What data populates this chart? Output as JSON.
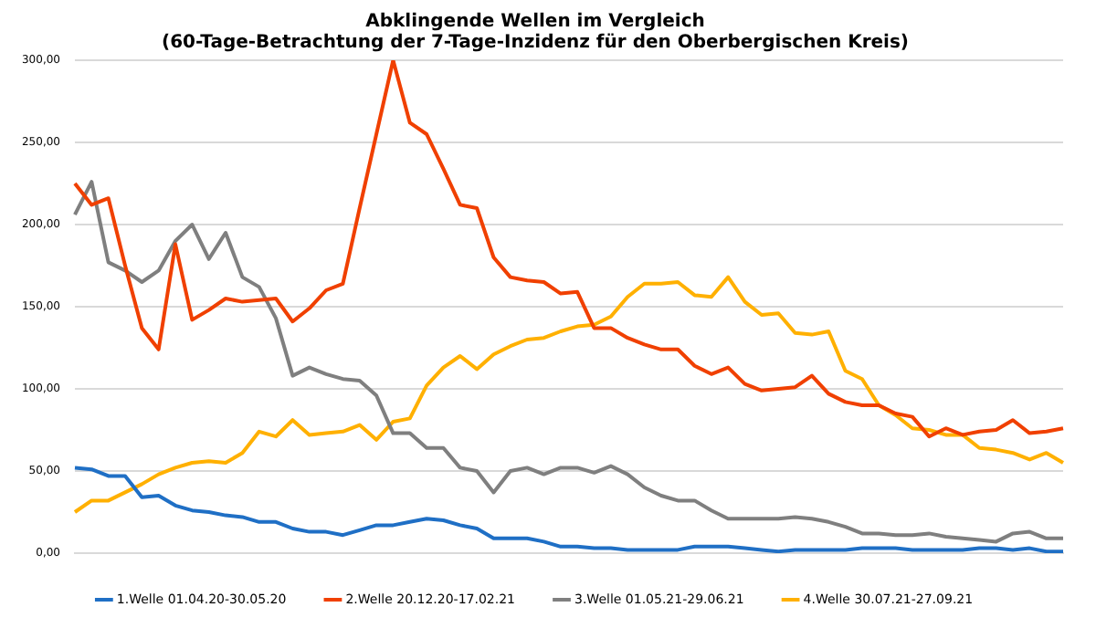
{
  "chart_data": {
    "type": "line",
    "title": "Abklingende Wellen im Vergleich",
    "subtitle": "(60-Tage-Betrachtung der 7-Tage-Inzidenz für den Oberbergischen Kreis)",
    "categories": [
      null,
      null,
      null,
      null,
      null,
      null,
      null,
      null,
      null,
      null,
      null,
      null,
      null,
      null,
      null,
      null,
      null,
      null,
      null,
      null,
      null,
      null,
      null,
      null,
      null,
      null,
      null,
      null,
      null,
      null,
      null,
      null,
      null,
      null,
      null,
      null,
      null,
      null,
      null,
      null,
      null,
      null,
      null,
      null,
      null,
      null,
      null,
      null,
      null,
      null,
      null,
      null,
      null,
      null,
      null,
      null,
      null,
      null,
      null,
      null
    ],
    "ylim": [
      0,
      300
    ],
    "yticks": [
      {
        "value": 0,
        "label": "0,00"
      },
      {
        "value": 50,
        "label": "50,00"
      },
      {
        "value": 100,
        "label": "100,00"
      },
      {
        "value": 150,
        "label": "150,00"
      },
      {
        "value": 200,
        "label": "200,00"
      },
      {
        "value": 250,
        "label": "250,00"
      },
      {
        "value": 300,
        "label": "300,00"
      }
    ],
    "grid": "y",
    "legend": "bottom",
    "marker": "none",
    "tick_labels": "y",
    "series": [
      {
        "name": "1.Welle 01.04.20-30.05.20",
        "color": "#1f6fc5",
        "values": [
          52,
          51,
          47,
          47,
          34,
          35,
          29,
          26,
          25,
          23,
          22,
          19,
          19,
          15,
          13,
          13,
          11,
          14,
          17,
          17,
          19,
          21,
          20,
          17,
          15,
          9,
          9,
          9,
          7,
          4,
          4,
          3,
          3,
          2,
          2,
          2,
          2,
          4,
          4,
          4,
          3,
          2,
          1,
          2,
          2,
          2,
          2,
          3,
          3,
          3,
          2,
          2,
          2,
          2,
          3,
          3,
          2,
          3,
          1,
          1
        ]
      },
      {
        "name": "2.Welle 20.12.20-17.02.21",
        "color": "#f04000",
        "values": [
          225,
          212,
          216,
          175,
          137,
          124,
          188,
          142,
          148,
          155,
          153,
          154,
          155,
          141,
          149,
          160,
          164,
          210,
          255,
          300,
          262,
          255,
          234,
          212,
          210,
          180,
          168,
          166,
          165,
          158,
          159,
          137,
          137,
          131,
          127,
          124,
          124,
          114,
          109,
          113,
          103,
          99,
          100,
          101,
          108,
          97,
          92,
          90,
          90,
          85,
          83,
          71,
          76,
          72,
          74,
          75,
          81,
          73,
          74,
          76
        ]
      },
      {
        "name": "3.Welle 01.05.21-29.06.21",
        "color": "#7f7f7f",
        "values": [
          206,
          226,
          177,
          172,
          165,
          172,
          190,
          200,
          179,
          195,
          168,
          162,
          143,
          108,
          113,
          109,
          106,
          105,
          96,
          73,
          73,
          64,
          64,
          52,
          50,
          37,
          50,
          52,
          48,
          52,
          52,
          49,
          53,
          48,
          40,
          35,
          32,
          32,
          26,
          21,
          21,
          21,
          21,
          22,
          21,
          19,
          16,
          12,
          12,
          11,
          11,
          12,
          10,
          9,
          8,
          7,
          12,
          13,
          9,
          9
        ]
      },
      {
        "name": "4.Welle 30.07.21-27.09.21",
        "color": "#ffb000",
        "values": [
          25,
          32,
          32,
          37,
          42,
          48,
          52,
          55,
          56,
          55,
          61,
          74,
          71,
          81,
          72,
          73,
          74,
          78,
          69,
          80,
          82,
          102,
          113,
          120,
          112,
          121,
          126,
          130,
          131,
          135,
          138,
          139,
          144,
          156,
          164,
          164,
          165,
          157,
          156,
          168,
          153,
          145,
          146,
          134,
          133,
          135,
          111,
          106,
          90,
          84,
          76,
          75,
          72,
          72,
          64,
          63,
          61,
          57,
          61,
          55
        ]
      }
    ]
  }
}
